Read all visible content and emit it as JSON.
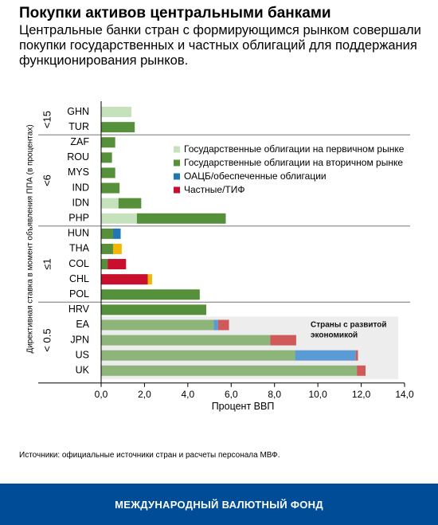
{
  "title": "Покупки активов центральными банками",
  "subtitle": "Центральные банки стран с формирующимся рынком совершали покупки государственных и частных облигаций для поддержания функционирования рынков.",
  "source": "Источники: официальные источники стран и расчеты персонала МВФ.",
  "footer": "МЕЖДУНАРОДНЫЙ ВАЛЮТНЫЙ ФОНД",
  "colors": {
    "primary_gov": "#c6e2bd",
    "secondary_gov": "#57903a",
    "covered": "#1f78b4",
    "private": "#c8102e",
    "other": "#f2b705",
    "advanced_secondary": "#8db57a",
    "advanced_covered": "#5b9bd5",
    "advanced_private": "#d05a5a",
    "advanced_bg": "#ededed"
  },
  "chart_data": {
    "type": "bar",
    "orientation": "horizontal",
    "stacked": true,
    "xlabel": "Процент ВВП",
    "ylabel": "Директивная ставка в момент объявления ППА (в процентах)",
    "xlim": [
      0,
      14
    ],
    "xticks": [
      "0,0",
      "2,0",
      "4,0",
      "6,0",
      "8,0",
      "10,0",
      "12,0",
      "14,0"
    ],
    "legend_position": "right",
    "categories": [
      "GHN",
      "TUR",
      "ZAF",
      "ROU",
      "MYS",
      "IND",
      "IDN",
      "PHP",
      "HUN",
      "THA",
      "COL",
      "CHL",
      "POL",
      "HRV",
      "EA",
      "JPN",
      "US",
      "UK"
    ],
    "groups": [
      {
        "label": "<15",
        "count": 2
      },
      {
        "label": "<6",
        "count": 6
      },
      {
        "label": "≤1",
        "count": 5
      },
      {
        "label": "< 0.5",
        "count": 5
      }
    ],
    "series": [
      {
        "name": "Государственные облигации на первичном рынке",
        "color_key": "primary_gov",
        "values": [
          1.4,
          0,
          0,
          0,
          0,
          0,
          0.8,
          1.65,
          0,
          0,
          0,
          0,
          0,
          0,
          0,
          0,
          0,
          0
        ]
      },
      {
        "name": "Государственные облигации на вторичном рынке",
        "color_key": "secondary_gov",
        "values": [
          0,
          1.55,
          0.65,
          0.5,
          0.65,
          0.85,
          1.05,
          4.1,
          0.55,
          0.55,
          0.3,
          0,
          4.55,
          4.85,
          5.2,
          7.8,
          8.95,
          11.8
        ]
      },
      {
        "name": "ОАЦБ/обеспеченные облигации",
        "color_key": "covered",
        "values": [
          0,
          0,
          0,
          0,
          0,
          0,
          0,
          0,
          0.35,
          0,
          0,
          0,
          0,
          0,
          0.2,
          0,
          2.8,
          0
        ]
      },
      {
        "name": "Частные/ТИФ",
        "color_key": "private",
        "values": [
          0,
          0,
          0,
          0,
          0,
          0,
          0,
          0,
          0,
          0,
          0.85,
          2.15,
          0,
          0,
          0.5,
          1.2,
          0.1,
          0.4
        ]
      },
      {
        "name": "",
        "color_key": "other",
        "values": [
          0,
          0,
          0,
          0,
          0,
          0,
          0,
          0,
          0,
          0.4,
          0,
          0.2,
          0,
          0,
          0,
          0,
          0,
          0
        ]
      }
    ],
    "annotation": {
      "label": "Страны с развитой экономикой",
      "rows": [
        "EA",
        "JPN",
        "US",
        "UK"
      ]
    }
  }
}
